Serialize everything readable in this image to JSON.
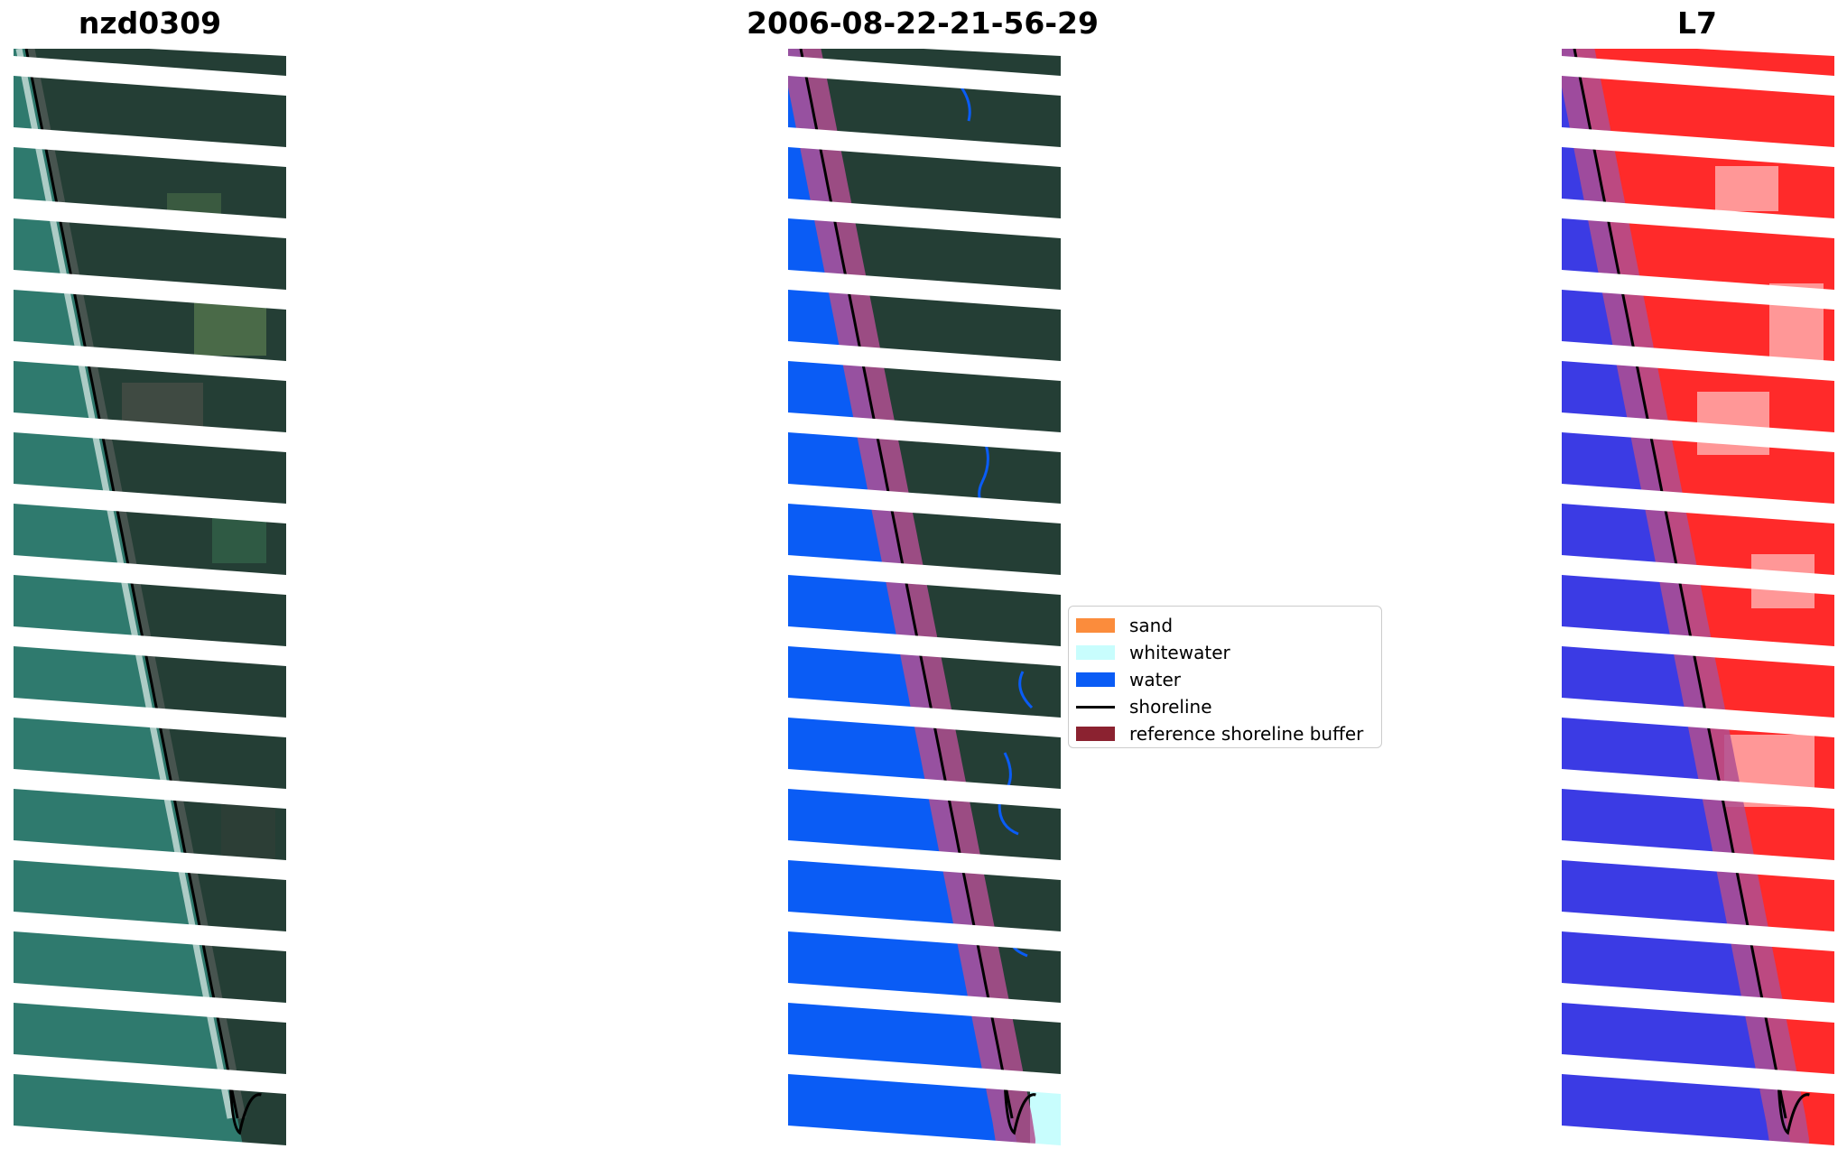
{
  "panels": [
    {
      "title": "nzd0309"
    },
    {
      "title": "2006-08-22-21-56-29"
    },
    {
      "title": "L7"
    }
  ],
  "legend": {
    "items": [
      {
        "label": "sand",
        "color": "#fb8c3c",
        "kind": "patch"
      },
      {
        "label": "whitewater",
        "color": "#c8fdfd",
        "kind": "patch"
      },
      {
        "label": "water",
        "color": "#0a5cf5",
        "kind": "patch"
      },
      {
        "label": "shoreline",
        "color": "#000000",
        "kind": "line"
      },
      {
        "label": "reference shoreline buffer",
        "color": "#8b2230",
        "kind": "patch"
      }
    ]
  },
  "colors": {
    "ocean": "#2f7a6e",
    "land": "#243e35",
    "water_class": "#0a5cf5",
    "buffer": "#b04f90",
    "index_water": "#3b3be4",
    "index_land": "#ff2a2a"
  }
}
